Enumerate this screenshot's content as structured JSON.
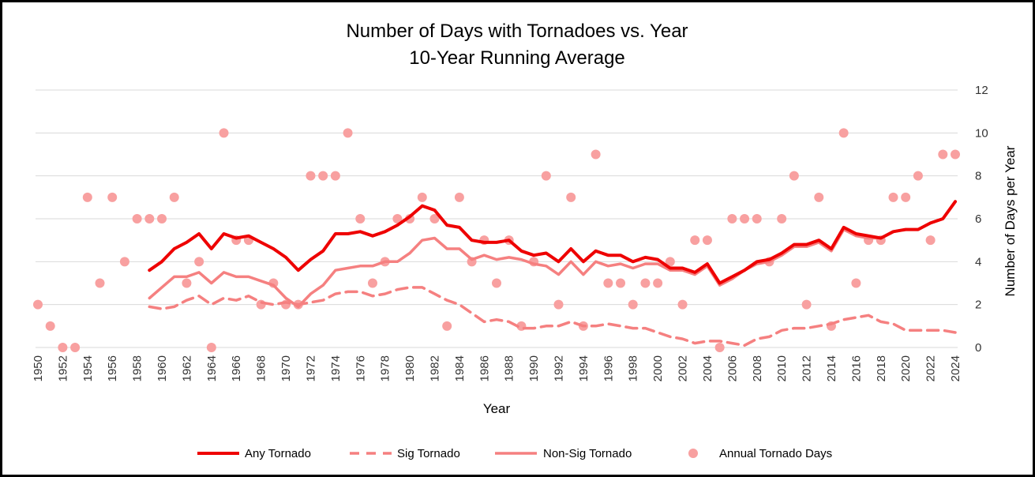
{
  "chart_data": {
    "type": "line",
    "title": "Number of Days with Tornadoes vs. Year",
    "subtitle": "10-Year Running Average",
    "xlabel": "Year",
    "ylabel": "Number of Days per Year",
    "x_range": [
      1950,
      2024
    ],
    "x_tick_labels": [
      "1950",
      "1952",
      "1954",
      "1956",
      "1958",
      "1960",
      "1962",
      "1964",
      "1966",
      "1968",
      "1970",
      "1972",
      "1974",
      "1976",
      "1978",
      "1980",
      "1982",
      "1984",
      "1986",
      "1988",
      "1990",
      "1992",
      "1994",
      "1996",
      "1998",
      "2000",
      "2002",
      "2004",
      "2006",
      "2008",
      "2010",
      "2012",
      "2014",
      "2016",
      "2018",
      "2020",
      "2022",
      "2024"
    ],
    "ylim": [
      0,
      12
    ],
    "y_ticks": [
      0,
      2,
      4,
      6,
      8,
      10,
      12
    ],
    "y_axis_side": "right",
    "grid": true,
    "legend_position": "bottom",
    "colors": {
      "any": "#ee0000",
      "sig": "#f58080",
      "nonsig": "#f58080",
      "points": "#f8a0a0",
      "grid": "#d9d9d9"
    },
    "series": [
      {
        "name": "Any Tornado",
        "style": "solid-thick",
        "start_year": 1959,
        "values": [
          3.6,
          4.0,
          4.6,
          4.9,
          5.3,
          4.6,
          5.3,
          5.1,
          5.2,
          4.9,
          4.6,
          4.2,
          3.6,
          4.1,
          4.5,
          5.3,
          5.3,
          5.4,
          5.2,
          5.4,
          5.7,
          6.1,
          6.6,
          6.4,
          5.7,
          5.6,
          5.0,
          4.9,
          4.9,
          5.0,
          4.5,
          4.3,
          4.4,
          4.0,
          4.6,
          4.0,
          4.5,
          4.3,
          4.3,
          4.0,
          4.2,
          4.1,
          3.7,
          3.7,
          3.5,
          3.9,
          3.0,
          3.3,
          3.6,
          4.0,
          4.1,
          4.4,
          4.8,
          4.8,
          5.0,
          4.6,
          5.6,
          5.3,
          5.2,
          5.1,
          5.4,
          5.5,
          5.5,
          5.8,
          6.0,
          6.8
        ]
      },
      {
        "name": "Sig Tornado",
        "style": "dashed",
        "start_year": 1959,
        "values": [
          1.9,
          1.8,
          1.9,
          2.2,
          2.4,
          2.0,
          2.3,
          2.2,
          2.4,
          2.1,
          2.0,
          2.1,
          2.0,
          2.1,
          2.2,
          2.5,
          2.6,
          2.6,
          2.4,
          2.5,
          2.7,
          2.8,
          2.8,
          2.5,
          2.2,
          2.0,
          1.6,
          1.2,
          1.3,
          1.2,
          0.9,
          0.9,
          1.0,
          1.0,
          1.2,
          1.0,
          1.0,
          1.1,
          1.0,
          0.9,
          0.9,
          0.7,
          0.5,
          0.4,
          0.2,
          0.3,
          0.3,
          0.2,
          0.1,
          0.4,
          0.5,
          0.8,
          0.9,
          0.9,
          1.0,
          1.1,
          1.3,
          1.4,
          1.5,
          1.2,
          1.1,
          0.8,
          0.8,
          0.8,
          0.8,
          0.7
        ]
      },
      {
        "name": "Non-Sig Tornado",
        "style": "solid",
        "start_year": 1959,
        "values": [
          2.3,
          2.8,
          3.3,
          3.3,
          3.5,
          3.0,
          3.5,
          3.3,
          3.3,
          3.1,
          2.9,
          2.3,
          1.9,
          2.5,
          2.9,
          3.6,
          3.7,
          3.8,
          3.8,
          4.0,
          4.0,
          4.4,
          5.0,
          5.1,
          4.6,
          4.6,
          4.1,
          4.3,
          4.1,
          4.2,
          4.1,
          3.9,
          3.8,
          3.4,
          4.0,
          3.4,
          4.0,
          3.8,
          3.9,
          3.7,
          3.9,
          3.9,
          3.6,
          3.6,
          3.4,
          3.8,
          2.9,
          3.2,
          3.6,
          3.9,
          4.0,
          4.3,
          4.7,
          4.7,
          4.9,
          4.5,
          5.5,
          5.2,
          5.1,
          5.1,
          5.4,
          5.5,
          5.5,
          5.8,
          6.0,
          6.8
        ]
      }
    ],
    "points": {
      "name": "Annual Tornado Days",
      "start_year": 1950,
      "values": [
        2,
        1,
        0,
        0,
        7,
        3,
        7,
        4,
        6,
        6,
        6,
        7,
        3,
        4,
        0,
        10,
        5,
        5,
        2,
        3,
        2,
        2,
        8,
        8,
        8,
        10,
        6,
        3,
        4,
        6,
        6,
        7,
        6,
        1,
        7,
        4,
        5,
        3,
        5,
        1,
        4,
        8,
        2,
        7,
        1,
        9,
        3,
        3,
        2,
        3,
        3,
        4,
        2,
        5,
        5,
        0,
        6,
        6,
        6,
        4,
        6,
        8,
        2,
        7,
        1,
        10,
        3,
        5,
        5,
        7,
        7,
        8,
        5,
        9,
        9
      ]
    },
    "legend": [
      {
        "label": "Any Tornado",
        "series": "Any Tornado"
      },
      {
        "label": "Sig Tornado",
        "series": "Sig Tornado"
      },
      {
        "label": "Non-Sig Tornado",
        "series": "Non-Sig Tornado"
      },
      {
        "label": "Annual Tornado Days",
        "series": "Annual Tornado Days"
      }
    ]
  }
}
